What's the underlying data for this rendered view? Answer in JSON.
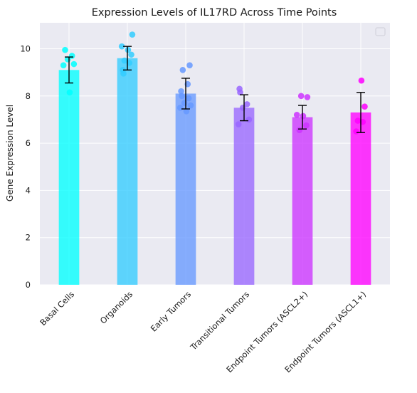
{
  "chart_data": {
    "type": "bar",
    "title": "Expression Levels of IL17RD Across Time Points",
    "xlabel": "",
    "ylabel": "Gene Expression Level",
    "ylim": [
      0,
      11.1
    ],
    "yticks": [
      0,
      2,
      4,
      6,
      8,
      10
    ],
    "grid": true,
    "legend": "top-right",
    "background_color": "#eaeaf2",
    "grid_color": "#ffffff",
    "categories": [
      "Basal Cells",
      "Organoids",
      "Early Tumors",
      "Transitional Tumors",
      "Endpoint Tumors (ASCL2+)",
      "Endpoint Tumors (ASCL1+)"
    ],
    "values": [
      9.1,
      9.6,
      8.1,
      7.5,
      7.1,
      7.3
    ],
    "errors": [
      0.55,
      0.5,
      0.65,
      0.55,
      0.5,
      0.85
    ],
    "colors": [
      "#00ffff",
      "#33ccff",
      "#6699ff",
      "#9966ff",
      "#cc33ff",
      "#ff00ff"
    ],
    "points": [
      [
        9.95,
        9.7,
        9.55,
        9.35,
        9.3,
        8.15
      ],
      [
        10.6,
        10.1,
        9.95,
        9.75,
        9.5,
        9.4,
        9.1,
        8.95
      ],
      [
        9.3,
        9.1,
        8.5,
        8.2,
        8.0,
        7.9,
        7.7,
        7.6,
        7.5,
        7.35
      ],
      [
        8.3,
        8.15,
        7.65,
        7.5,
        7.0,
        6.8
      ],
      [
        8.0,
        7.95,
        7.2,
        7.15,
        6.75,
        6.55
      ],
      [
        8.65,
        7.55,
        6.95,
        6.9,
        6.5
      ]
    ]
  }
}
